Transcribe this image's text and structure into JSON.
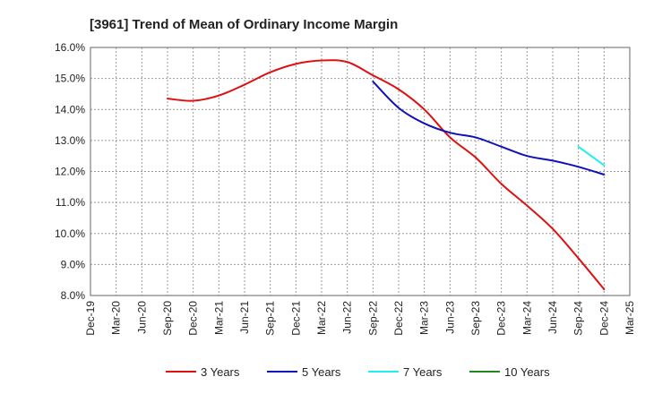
{
  "chart_data": {
    "type": "line",
    "title": "[3961]  Trend of Mean of Ordinary Income Margin",
    "xlabel": "",
    "ylabel": "",
    "x_ticks": [
      "Dec-19",
      "Mar-20",
      "Jun-20",
      "Sep-20",
      "Dec-20",
      "Mar-21",
      "Jun-21",
      "Sep-21",
      "Dec-21",
      "Mar-22",
      "Jun-22",
      "Sep-22",
      "Dec-22",
      "Mar-23",
      "Jun-23",
      "Sep-23",
      "Dec-23",
      "Mar-24",
      "Jun-24",
      "Sep-24",
      "Dec-24",
      "Mar-25"
    ],
    "y_ticks": [
      "8.0%",
      "9.0%",
      "10.0%",
      "11.0%",
      "12.0%",
      "13.0%",
      "14.0%",
      "15.0%",
      "16.0%"
    ],
    "ylim": [
      8,
      16
    ],
    "y_unit": "%",
    "grid": true,
    "legend_position": "bottom",
    "series": [
      {
        "name": "3 Years",
        "color": "#dd1111",
        "points": [
          [
            "Sep-20",
            14.35
          ],
          [
            "Dec-20",
            14.28
          ],
          [
            "Mar-21",
            14.45
          ],
          [
            "Jun-21",
            14.8
          ],
          [
            "Sep-21",
            15.2
          ],
          [
            "Dec-21",
            15.47
          ],
          [
            "Mar-22",
            15.58
          ],
          [
            "Jun-22",
            15.53
          ],
          [
            "Sep-22",
            15.1
          ],
          [
            "Dec-22",
            14.65
          ],
          [
            "Mar-23",
            14.0
          ],
          [
            "Jun-23",
            13.1
          ],
          [
            "Sep-23",
            12.45
          ],
          [
            "Dec-23",
            11.6
          ],
          [
            "Mar-24",
            10.9
          ],
          [
            "Jun-24",
            10.15
          ],
          [
            "Sep-24",
            9.2
          ],
          [
            "Dec-24",
            8.2
          ]
        ]
      },
      {
        "name": "5 Years",
        "color": "#1111bb",
        "points": [
          [
            "Sep-22",
            14.9
          ],
          [
            "Dec-22",
            14.05
          ],
          [
            "Mar-23",
            13.55
          ],
          [
            "Jun-23",
            13.25
          ],
          [
            "Sep-23",
            13.1
          ],
          [
            "Dec-23",
            12.8
          ],
          [
            "Mar-24",
            12.5
          ],
          [
            "Jun-24",
            12.35
          ],
          [
            "Sep-24",
            12.15
          ],
          [
            "Dec-24",
            11.9
          ]
        ]
      },
      {
        "name": "7 Years",
        "color": "#22eeee",
        "points": [
          [
            "Sep-24",
            12.8
          ],
          [
            "Dec-24",
            12.2
          ]
        ]
      },
      {
        "name": "10 Years",
        "color": "#228822",
        "points": []
      }
    ]
  }
}
